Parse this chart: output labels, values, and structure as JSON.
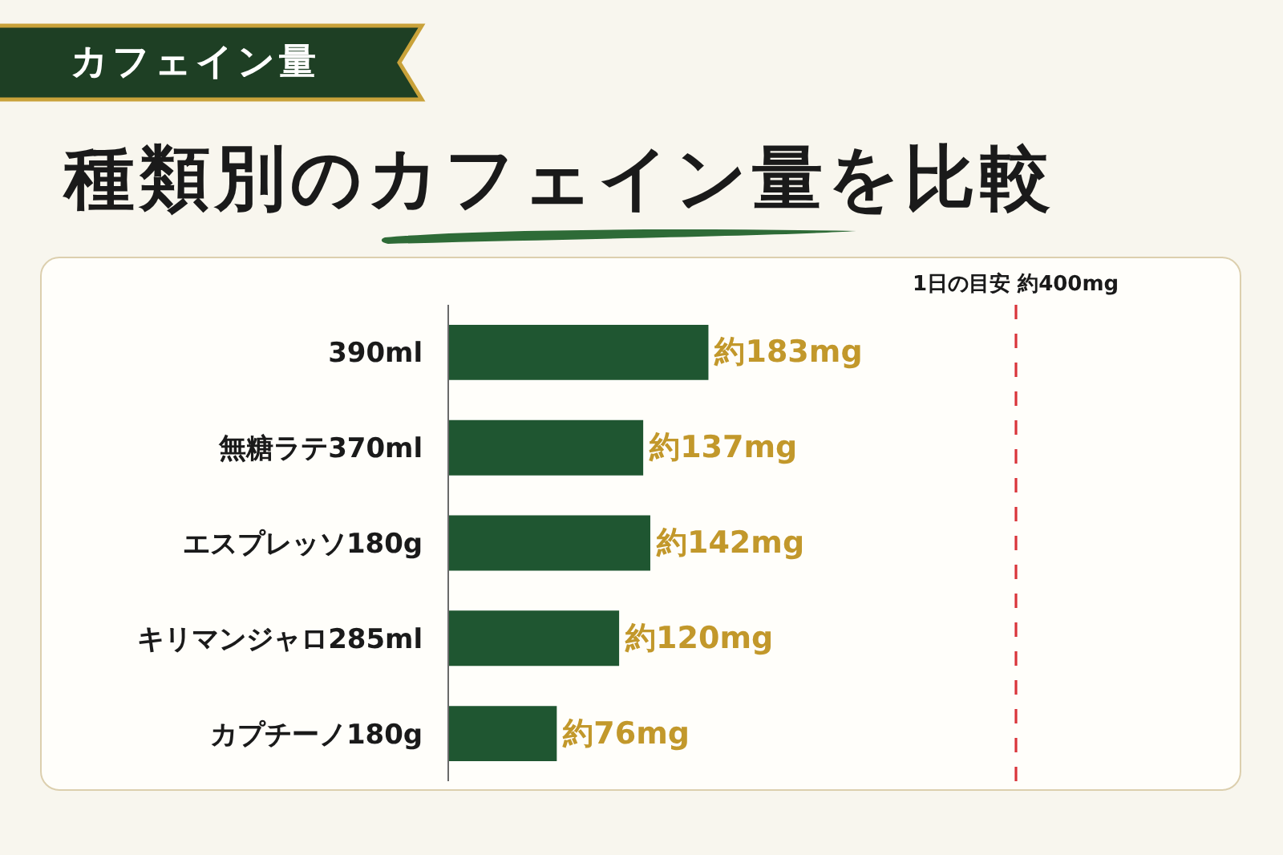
{
  "chart_data": {
    "type": "bar",
    "orientation": "horizontal",
    "title": "種類別のカフェイン量を比較",
    "annotations": [
      "カフェイン量"
    ],
    "categories": [
      "390ml",
      "無糖ラテ370ml",
      "エスプレッソ180g",
      "キリマンジャロ285ml",
      "カプチーノ180g"
    ],
    "values": [
      183,
      137,
      142,
      120,
      76
    ],
    "value_labels": [
      "約183mg",
      "約137mg",
      "約142mg",
      "約120mg",
      "約76mg"
    ],
    "color": "#1f5631",
    "tick_labels": "y",
    "ref_lines": [
      {
        "axis": "x",
        "value": 400,
        "label": "1日の目安 約400mg",
        "color": "#d9343a",
        "line_style": "dashed"
      }
    ]
  }
}
